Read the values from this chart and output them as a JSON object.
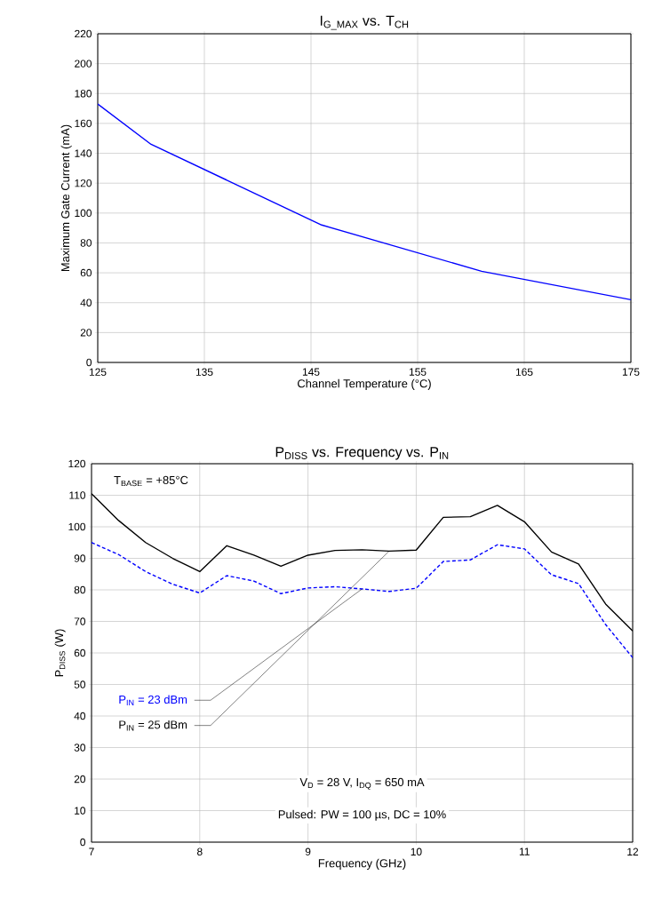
{
  "chart_data": [
    {
      "type": "line",
      "title": "I$_{G_MAX}$ vs. T$_{CH}$",
      "xlabel": "Channel Temperature (°C)",
      "ylabel": "Maximum Gate Current (mA)",
      "xlim": [
        125,
        175
      ],
      "ylim": [
        0,
        220
      ],
      "xticks": [
        125,
        135,
        145,
        155,
        165,
        175
      ],
      "yticks": [
        0,
        20,
        40,
        60,
        80,
        100,
        120,
        140,
        160,
        180,
        200,
        220
      ],
      "grid": true,
      "series": [
        {
          "color": "#0000ff",
          "x": [
            125,
            130,
            146,
            161,
            175
          ],
          "values": [
            173,
            146,
            92,
            61,
            42
          ]
        }
      ]
    },
    {
      "type": "line",
      "title": "P$_{DISS}$ vs. Frequency vs. P$_{IN}$",
      "xlabel": "Frequency (GHz)",
      "ylabel": "P$_{DISS}$ (W)",
      "xlim": [
        7,
        12
      ],
      "ylim": [
        0,
        120
      ],
      "xticks": [
        7,
        8,
        9,
        10,
        11,
        12
      ],
      "yticks": [
        0,
        10,
        20,
        30,
        40,
        50,
        60,
        70,
        80,
        90,
        100,
        110,
        120
      ],
      "grid": true,
      "annotations": [
        "T$_{BASE}$ = +85°C",
        "V$_{D}$ = 28 V, I$_{DQ}$ = 650 mA",
        "Pulsed: PW = 100 µs, DC = 10%"
      ],
      "x": [
        7,
        7.25,
        7.5,
        7.75,
        8,
        8.25,
        8.5,
        8.75,
        9,
        9.25,
        9.5,
        9.75,
        10,
        10.25,
        10.5,
        10.75,
        11,
        11.25,
        11.5,
        11.75,
        12
      ],
      "series": [
        {
          "name": "P$_{IN}$ = 23 dBm",
          "color": "#0000ff",
          "line_style": "dashed",
          "values": [
            95,
            91.2,
            85.8,
            81.8,
            79,
            84.5,
            82.8,
            78.8,
            80.6,
            81,
            80.3,
            79.5,
            80.5,
            89,
            89.5,
            94.3,
            93,
            84.8,
            82,
            69,
            58.5
          ]
        },
        {
          "name": "P$_{IN}$ = 25 dBm",
          "color": "#000000",
          "line_style": "solid",
          "values": [
            110.5,
            102,
            95,
            90,
            85.8,
            94,
            91,
            87.5,
            91,
            92.5,
            92.7,
            92.3,
            92.6,
            103,
            103.2,
            106.8,
            101.6,
            92,
            88.2,
            75.5,
            67
          ]
        }
      ]
    }
  ]
}
